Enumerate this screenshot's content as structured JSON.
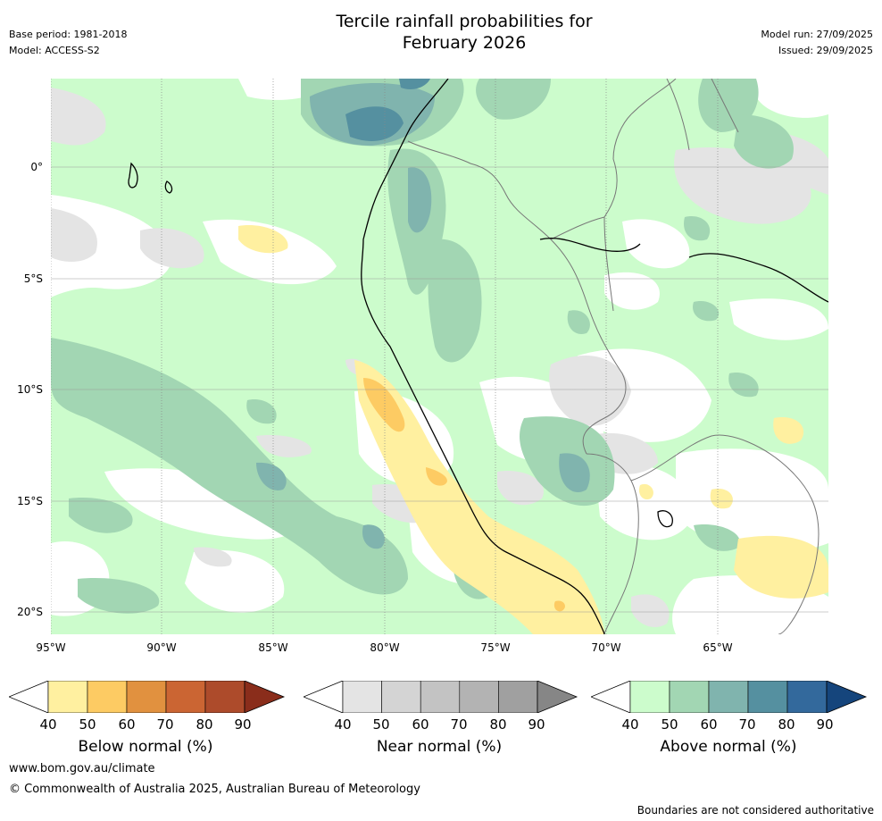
{
  "title": {
    "line1": "Tercile rainfall probabilities for",
    "line2": "February 2026"
  },
  "meta": {
    "base_period": "Base period: 1981-2018",
    "model": "Model: ACCESS-S2",
    "model_run": "Model run: 27/09/2025",
    "issued": "Issued: 29/09/2025"
  },
  "map": {
    "lon_labels": [
      "95°W",
      "90°W",
      "85°W",
      "80°W",
      "75°W",
      "70°W",
      "65°W"
    ],
    "lat_labels": [
      "0°",
      "5°S",
      "10°S",
      "15°S",
      "20°S"
    ]
  },
  "colorbars": [
    {
      "label": "Below normal (%)",
      "ticks": [
        "40",
        "50",
        "60",
        "70",
        "80",
        "90"
      ],
      "colors": [
        "#fff0a0",
        "#fdcb63",
        "#e1913f",
        "#cb6533",
        "#ad4b2b",
        "#8a2d1b"
      ]
    },
    {
      "label": "Near normal (%)",
      "ticks": [
        "40",
        "50",
        "60",
        "70",
        "80",
        "90"
      ],
      "colors": [
        "#e4e4e4",
        "#d4d4d4",
        "#c3c3c3",
        "#b3b3b3",
        "#a0a0a0",
        "#868686"
      ]
    },
    {
      "label": "Above normal (%)",
      "ticks": [
        "40",
        "50",
        "60",
        "70",
        "80",
        "90"
      ],
      "colors": [
        "#ccfccc",
        "#a2d6b3",
        "#80b4ae",
        "#5590a0",
        "#33699c",
        "#15457c"
      ]
    }
  ],
  "footer": {
    "url": "www.bom.gov.au/climate",
    "copyright": "© Commonwealth of Australia 2025, Australian Bureau of Meteorology",
    "disclaimer": "Boundaries are not considered authoritative"
  }
}
